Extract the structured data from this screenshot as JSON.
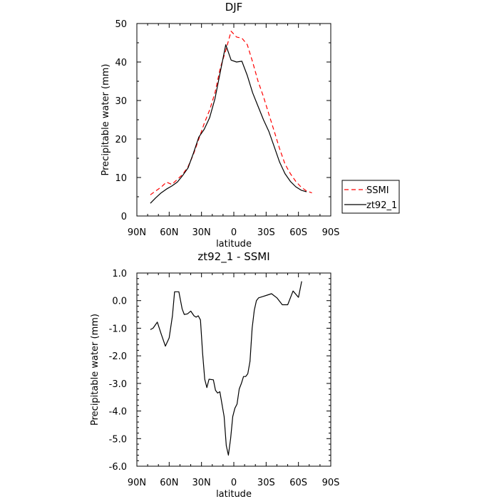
{
  "chart_data": [
    {
      "type": "line",
      "title": "DJF",
      "xlabel": "latitude",
      "ylabel": "Precipitable water (mm)",
      "xlim": [
        90,
        -90
      ],
      "ylim": [
        0,
        50
      ],
      "xticks": [
        90,
        60,
        30,
        0,
        -30,
        -60,
        -90
      ],
      "xtick_labels": [
        "90N",
        "60N",
        "30N",
        "0",
        "30S",
        "60S",
        "90S"
      ],
      "yticks": [
        0,
        10,
        20,
        30,
        40,
        50
      ],
      "ytick_labels": [
        "0",
        "10",
        "20",
        "30",
        "40",
        "50"
      ],
      "legend": {
        "placement": "right",
        "entries": [
          "SSMI",
          "zt92_1"
        ]
      },
      "series": [
        {
          "name": "SSMI",
          "color": "#ff0000",
          "dash": "dashed",
          "x": [
            77.5,
            72.5,
            67.5,
            62.5,
            57.5,
            52.5,
            47.5,
            42.5,
            37.5,
            32.5,
            27.5,
            22.5,
            17.5,
            12.5,
            7.5,
            2.5,
            -2.5,
            -7.5,
            -12.5,
            -17.5,
            -22.5,
            -27.5,
            -32.5,
            -37.5,
            -42.5,
            -47.5,
            -52.5,
            -57.5,
            -62.5,
            -67.5,
            -72.5,
            -77.5
          ],
          "values": [
            5.5,
            6.5,
            7.5,
            8.8,
            8.2,
            9.5,
            10.8,
            12.8,
            16.0,
            20.0,
            24.0,
            27.5,
            32.0,
            38.5,
            43.0,
            48.0,
            46.5,
            46.2,
            44.5,
            40.0,
            35.0,
            31.0,
            26.5,
            22.0,
            17.5,
            13.5,
            11.0,
            9.0,
            7.5,
            6.5,
            6.0,
            null
          ]
        },
        {
          "name": "zt92_1",
          "color": "#000000",
          "dash": "solid",
          "x": [
            77.5,
            72.5,
            67.5,
            62.5,
            57.5,
            52.5,
            47.5,
            42.5,
            37.5,
            32.5,
            27.5,
            22.5,
            17.5,
            12.5,
            7.5,
            2.5,
            -2.5,
            -7.5,
            -12.5,
            -17.5,
            -22.5,
            -27.5,
            -32.5,
            -37.5,
            -42.5,
            -47.5,
            -52.5,
            -57.5,
            -62.5,
            -67.5,
            -72.5,
            -77.5
          ],
          "values": [
            3.3,
            4.7,
            6.0,
            7.0,
            7.8,
            8.8,
            10.5,
            12.5,
            16.3,
            20.5,
            22.5,
            25.5,
            30.5,
            37.5,
            44.5,
            40.5,
            40.0,
            40.2,
            36.5,
            32.0,
            28.5,
            25.0,
            22.0,
            18.0,
            14.0,
            11.0,
            9.0,
            7.6,
            6.7,
            6.3,
            null,
            null
          ]
        }
      ]
    },
    {
      "type": "line",
      "title": "zt92_1 - SSMI",
      "xlabel": "latitude",
      "ylabel": "Precipitable water (mm)",
      "xlim": [
        90,
        -90
      ],
      "ylim": [
        -6,
        1
      ],
      "xticks": [
        90,
        60,
        30,
        0,
        -30,
        -60,
        -90
      ],
      "xtick_labels": [
        "90N",
        "60N",
        "30N",
        "0",
        "30S",
        "60S",
        "90S"
      ],
      "yticks": [
        1,
        0,
        -1,
        -2,
        -3,
        -4,
        -5,
        -6
      ],
      "ytick_labels": [
        "1.0",
        "0.0",
        "-1.0",
        "-2.0",
        "-3.0",
        "-4.0",
        "-5.0",
        "-6.0"
      ],
      "series": [
        {
          "name": "zt92_1 - SSMI",
          "color": "#000000",
          "dash": "solid",
          "x": [
            77.5,
            75,
            71,
            67.5,
            63.5,
            60,
            57,
            55,
            51,
            48,
            46,
            43,
            40,
            37,
            35,
            33,
            31,
            29,
            27,
            25,
            23,
            19,
            17,
            15,
            13,
            9,
            7,
            5,
            3,
            1,
            -1,
            -3,
            -5,
            -7,
            -9,
            -11,
            -13,
            -15,
            -17,
            -19,
            -21,
            -23,
            -27,
            -31,
            -35,
            -40,
            -45,
            -50,
            -55,
            -60,
            -63,
            -66,
            -68.5,
            -70,
            -72.5
          ],
          "values": [
            -1.05,
            -1.0,
            -0.78,
            -1.2,
            -1.65,
            -1.35,
            -0.55,
            0.32,
            0.32,
            -0.3,
            -0.5,
            -0.48,
            -0.38,
            -0.55,
            -0.6,
            -0.55,
            -0.7,
            -1.9,
            -2.85,
            -3.15,
            -2.85,
            -2.87,
            -3.25,
            -3.35,
            -3.3,
            -4.2,
            -5.25,
            -5.6,
            -5.0,
            -4.2,
            -3.9,
            -3.75,
            -3.2,
            -3.0,
            -2.75,
            -2.75,
            -2.65,
            -2.2,
            -1.0,
            -0.35,
            0.0,
            0.1,
            0.15,
            0.2,
            0.25,
            0.1,
            -0.15,
            -0.15,
            0.35,
            0.12,
            0.7,
            null,
            null,
            null,
            null
          ]
        }
      ]
    }
  ]
}
